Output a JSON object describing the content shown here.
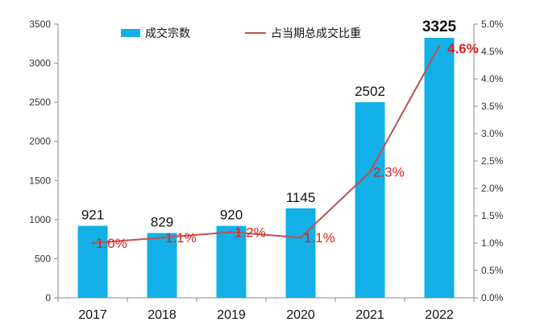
{
  "chart_data": {
    "type": "bar",
    "categories": [
      "2017",
      "2018",
      "2019",
      "2020",
      "2021",
      "2022"
    ],
    "series": [
      {
        "name": "成交宗数",
        "kind": "bar",
        "axis": "left",
        "values": [
          921,
          829,
          920,
          1145,
          2502,
          3325
        ],
        "labels": [
          "921",
          "829",
          "920",
          "1145",
          "2502",
          "3325"
        ],
        "color": "#12B0E6"
      },
      {
        "name": "占当期总成交比重",
        "kind": "line",
        "axis": "right",
        "values": [
          1.0,
          1.1,
          1.2,
          1.1,
          2.3,
          4.6
        ],
        "labels": [
          "1.0%",
          "1.1%",
          "1.2%",
          "1.1%",
          "2.3%",
          "4.6%"
        ],
        "color": "#C0504D",
        "label_color": "#E0201B"
      }
    ],
    "y_left": {
      "min": 0,
      "max": 3500,
      "ticks": [
        "0",
        "500",
        "1000",
        "1500",
        "2000",
        "2500",
        "3000",
        "3500"
      ]
    },
    "y_right": {
      "min": 0,
      "max": 5.0,
      "ticks": [
        "0.0%",
        "0.5%",
        "1.0%",
        "1.5%",
        "2.0%",
        "2.5%",
        "3.0%",
        "3.5%",
        "4.0%",
        "4.5%",
        "5.0%"
      ]
    },
    "legend_position": "top-center",
    "grid": false
  }
}
